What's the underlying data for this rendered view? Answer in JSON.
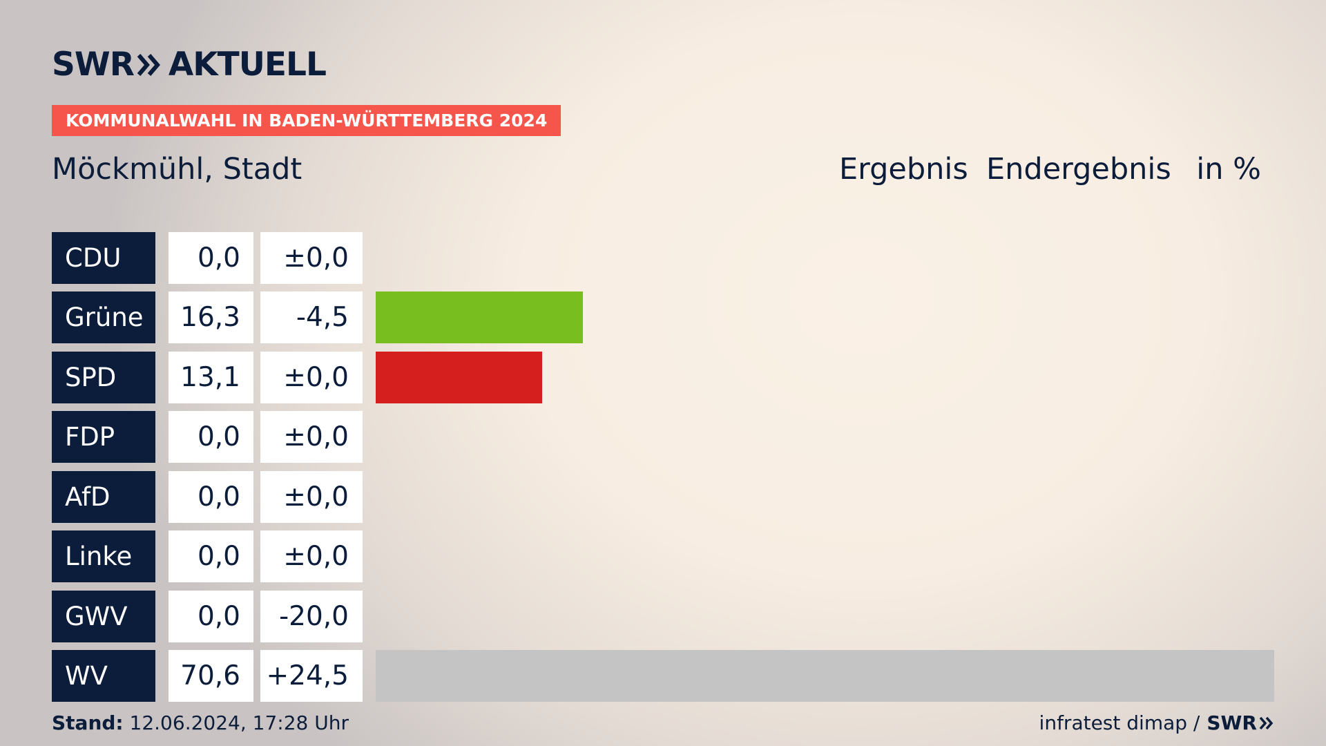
{
  "brand": {
    "logo_left": "SWR",
    "logo_right": "AKTUELL"
  },
  "banner": "KOMMUNALWAHL IN BADEN-WÜRTTEMBERG 2024",
  "place": "Möckmühl, Stadt",
  "header": {
    "result": "Ergebnis",
    "status": "Endergebnis",
    "unit": "in %"
  },
  "chart_data": {
    "type": "bar",
    "orientation": "horizontal",
    "categories": [
      "CDU",
      "Grüne",
      "SPD",
      "FDP",
      "AfD",
      "Linke",
      "GWV",
      "WV"
    ],
    "values": [
      0.0,
      16.3,
      13.1,
      0.0,
      0.0,
      0.0,
      0.0,
      70.6
    ],
    "value_labels": [
      "0,0",
      "16,3",
      "13,1",
      "0,0",
      "0,0",
      "0,0",
      "0,0",
      "70,6"
    ],
    "changes": [
      "±0,0",
      "-4,5",
      "±0,0",
      "±0,0",
      "±0,0",
      "±0,0",
      "-20,0",
      "+24,5"
    ],
    "colors": [
      "#000000",
      "#78be1e",
      "#d51e1e",
      "#f7d000",
      "#1e8fd8",
      "#b01e6a",
      "#999999",
      "#c4c4c4"
    ],
    "xlim": [
      0,
      70.6
    ]
  },
  "footer": {
    "stand_label": "Stand:",
    "stand_value": "12.06.2024, 17:28 Uhr",
    "source": "infratest dimap /",
    "source_brand": "SWR"
  }
}
